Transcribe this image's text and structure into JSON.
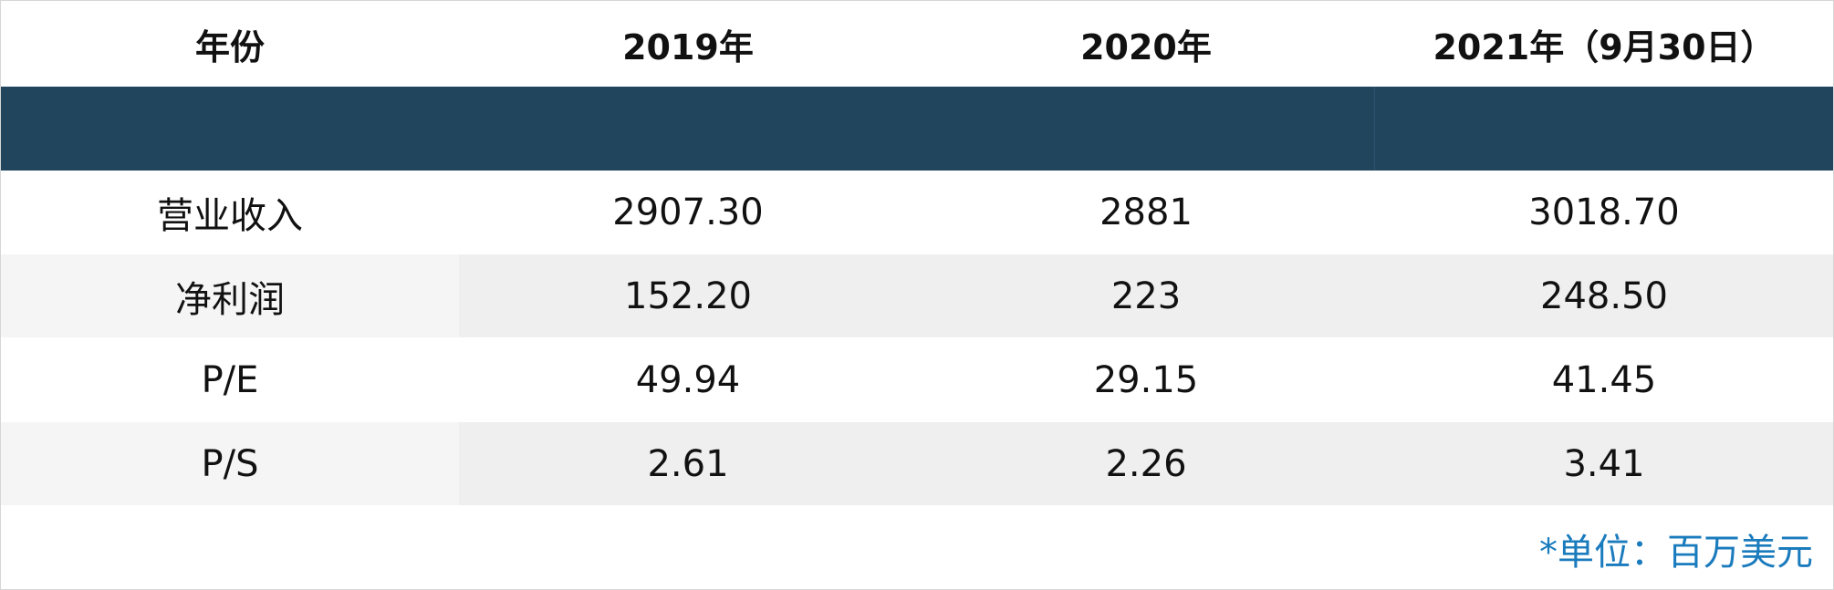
{
  "table": {
    "header": [
      "年份",
      "2019年",
      "2020年",
      "2021年（9月30日）"
    ],
    "rows": [
      [
        "营业收入",
        "2907.30",
        "2881",
        "3018.70"
      ],
      [
        "净利润",
        "152.20",
        "223",
        "248.50"
      ],
      [
        "P/E",
        "49.94",
        "29.15",
        "41.45"
      ],
      [
        "P/S",
        "2.61",
        "2.26",
        "3.41"
      ]
    ],
    "note": "*单位：百万美元"
  }
}
